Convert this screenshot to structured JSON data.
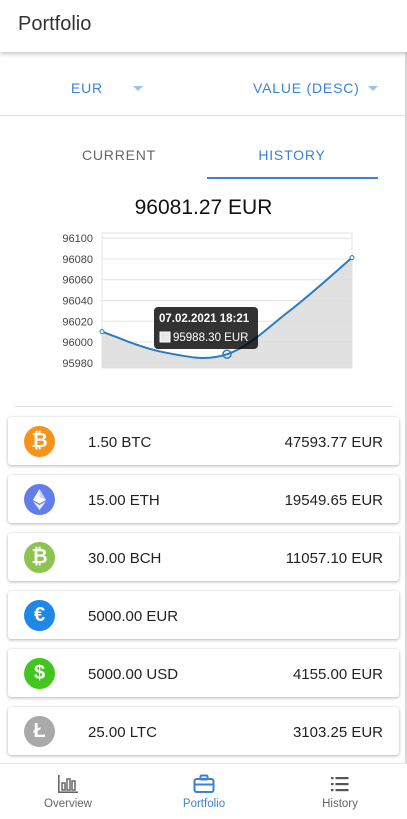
{
  "appbar": {
    "title": "Portfolio"
  },
  "filters": {
    "currency": "EUR",
    "sort": "VALUE (DESC)"
  },
  "tabs": {
    "current": "CURRENT",
    "history": "HISTORY"
  },
  "total": "96081.27 EUR",
  "chart_data": {
    "type": "line",
    "title": "",
    "xlabel": "",
    "ylabel": "",
    "ylim": [
      95975,
      96105
    ],
    "yticks": [
      "96100",
      "96080",
      "96060",
      "96040",
      "96020",
      "96000",
      "95980"
    ],
    "x": [
      0,
      1,
      2,
      3,
      4
    ],
    "series": [
      {
        "values": [
          96010,
          95990,
          95988.3,
          96030,
          96081.27
        ]
      }
    ],
    "grid": true,
    "tooltip": {
      "point_index": 2,
      "title": "07.02.2021 18:21",
      "value": "95988.30 EUR"
    }
  },
  "assets": [
    {
      "icon": "bitcoin-icon",
      "symbol": "₿",
      "color": "#f7931a",
      "amount": "1.50 BTC",
      "value": "47593.77 EUR"
    },
    {
      "icon": "ethereum-icon",
      "symbol": "",
      "color": "#627eea",
      "amount": "15.00 ETH",
      "value": "19549.65 EUR"
    },
    {
      "icon": "bitcoin-cash-icon",
      "symbol": "₿",
      "color": "#8dc351",
      "amount": "30.00 BCH",
      "value": "11057.10 EUR"
    },
    {
      "icon": "euro-icon",
      "symbol": "€",
      "color": "#1e88e5",
      "amount": "5000.00 EUR",
      "value": ""
    },
    {
      "icon": "dollar-icon",
      "symbol": "$",
      "color": "#43c51f",
      "amount": "5000.00 USD",
      "value": "4155.00 EUR"
    },
    {
      "icon": "litecoin-icon",
      "symbol": "Ł",
      "color": "#a9a9a9",
      "amount": "25.00 LTC",
      "value": "3103.25 EUR"
    }
  ],
  "nav": {
    "overview": "Overview",
    "portfolio": "Portfolio",
    "history": "History"
  }
}
